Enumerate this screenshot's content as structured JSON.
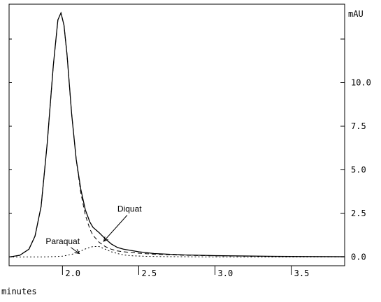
{
  "chart_data": {
    "type": "line",
    "x_unit_label": "minutes",
    "y_unit_label": "mAU",
    "xlim": [
      1.65,
      3.85
    ],
    "ylim": [
      -0.5,
      14.5
    ],
    "x_ticks": [
      2.0,
      2.5,
      3.0,
      3.5
    ],
    "x_tick_labels": [
      "2.0",
      "2.5",
      "3.0",
      "3.5"
    ],
    "y_ticks": [
      0.0,
      2.5,
      5.0,
      7.5,
      10.0
    ],
    "y_tick_labels": [
      "0.0",
      "2.5",
      "5.0",
      "7.5",
      "10.0"
    ],
    "series": [
      {
        "style": "solid",
        "x": [
          1.65,
          1.72,
          1.78,
          1.82,
          1.86,
          1.9,
          1.94,
          1.97,
          1.99,
          2.01,
          2.03,
          2.06,
          2.09,
          2.12,
          2.15,
          2.18,
          2.2,
          2.24,
          2.28,
          2.32,
          2.36,
          2.4,
          2.5,
          2.6,
          2.8,
          3.0,
          3.2,
          3.4,
          3.6,
          3.85
        ],
        "y": [
          0.0,
          0.1,
          0.45,
          1.2,
          2.9,
          6.5,
          11.0,
          13.6,
          14.0,
          13.3,
          11.6,
          8.2,
          5.6,
          3.9,
          2.7,
          2.0,
          1.7,
          1.4,
          1.05,
          0.75,
          0.55,
          0.45,
          0.3,
          0.2,
          0.12,
          0.08,
          0.06,
          0.04,
          0.03,
          0.02
        ]
      },
      {
        "name": "Diquat",
        "style": "dash",
        "x": [
          1.65,
          1.72,
          1.78,
          1.82,
          1.86,
          1.9,
          1.94,
          1.97,
          1.99,
          2.01,
          2.03,
          2.06,
          2.09,
          2.12,
          2.15,
          2.18,
          2.2,
          2.24,
          2.28,
          2.32,
          2.36,
          2.4,
          2.5,
          2.6,
          2.8,
          3.0,
          3.2,
          3.4,
          3.6,
          3.85
        ],
        "y": [
          0.0,
          0.1,
          0.45,
          1.2,
          2.9,
          6.5,
          11.0,
          13.6,
          14.0,
          13.3,
          11.6,
          8.2,
          5.6,
          3.7,
          2.4,
          1.6,
          1.25,
          0.85,
          0.6,
          0.45,
          0.35,
          0.3,
          0.22,
          0.16,
          0.1,
          0.07,
          0.05,
          0.03,
          0.02,
          0.01
        ]
      },
      {
        "name": "Paraquat",
        "style": "dot",
        "x": [
          1.65,
          1.9,
          2.0,
          2.06,
          2.12,
          2.16,
          2.2,
          2.24,
          2.28,
          2.32,
          2.36,
          2.4,
          2.46,
          2.55,
          2.7,
          2.9,
          3.2,
          3.5,
          3.85
        ],
        "y": [
          0.0,
          0.01,
          0.05,
          0.15,
          0.35,
          0.5,
          0.6,
          0.6,
          0.45,
          0.3,
          0.2,
          0.12,
          0.07,
          0.04,
          0.02,
          0.01,
          0.0,
          0.0,
          0.0
        ]
      }
    ],
    "annotations": [
      {
        "text": "Diquat",
        "x": 2.36,
        "y": 2.6,
        "arrow_to": [
          2.27,
          0.9
        ]
      },
      {
        "text": "Paraquat",
        "x": 1.89,
        "y": 0.75,
        "arrow_to": [
          2.11,
          0.2
        ]
      }
    ]
  }
}
